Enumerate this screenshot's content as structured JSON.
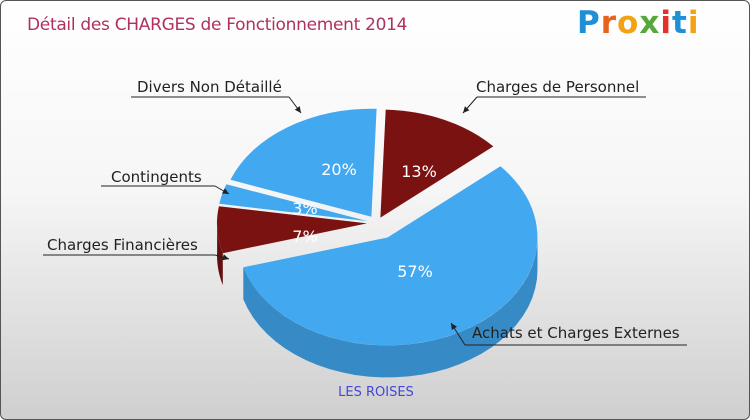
{
  "title": "Détail des CHARGES de Fonctionnement 2014",
  "logo": {
    "letters": [
      "P",
      "r",
      "o",
      "x",
      "i",
      "t",
      "i"
    ]
  },
  "colors": {
    "blue": "#42a8f0",
    "dark_red": "#7a1212"
  },
  "chart_data": {
    "type": "pie",
    "title": "Détail des CHARGES de Fonctionnement 2014",
    "category_label": "LES ROISES",
    "slices": [
      {
        "label": "Charges de Personnel",
        "value": 13,
        "value_label": "13%",
        "color": "#7a1212"
      },
      {
        "label": "Achats et Charges Externes",
        "value": 57,
        "value_label": "57%",
        "color": "#42a8f0"
      },
      {
        "label": "Charges Financières",
        "value": 7,
        "value_label": "7%",
        "color": "#7a1212"
      },
      {
        "label": "Contingents",
        "value": 3,
        "value_label": "3%",
        "color": "#42a8f0"
      },
      {
        "label": "Divers Non Détaillé",
        "value": 20,
        "value_label": "20%",
        "color": "#42a8f0"
      }
    ]
  }
}
